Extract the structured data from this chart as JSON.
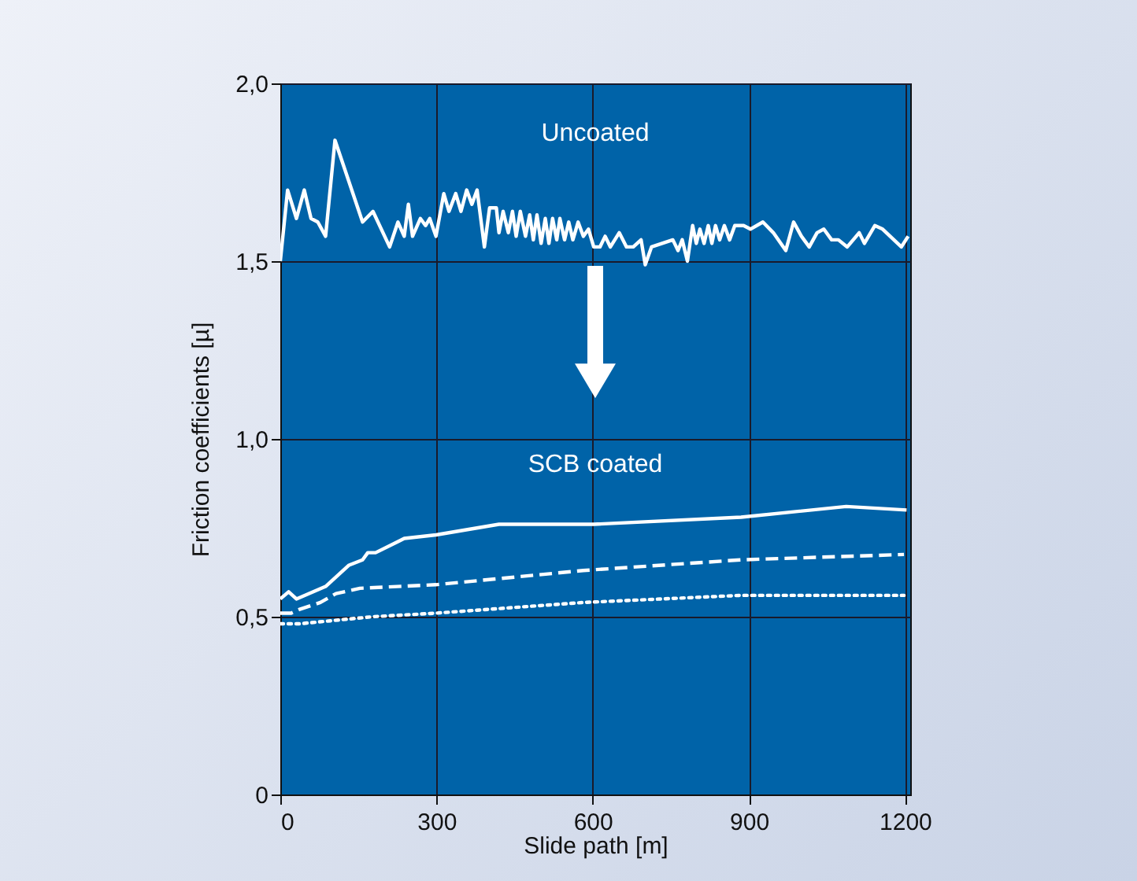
{
  "chart_data": {
    "type": "line",
    "xlabel": "Slide path [m]",
    "ylabel": "Friction coefficients [µ]",
    "xlim": [
      0,
      1210
    ],
    "xticks": [
      0,
      300,
      600,
      900,
      1200
    ],
    "ylim": [
      0,
      2
    ],
    "yticks": [
      {
        "value": 0,
        "label": "0"
      },
      {
        "value": 0.5,
        "label": "0,5"
      },
      {
        "value": 1,
        "label": "1,0"
      },
      {
        "value": 1.5,
        "label": "1,5"
      },
      {
        "value": 2,
        "label": "2,0"
      }
    ],
    "grid": true,
    "marker": "none",
    "series": [
      {
        "color": "#ffffff",
        "line_style": "solid",
        "x": [
          0,
          14,
          31,
          46,
          59,
          72,
          87,
          105,
          158,
          178,
          210,
          226,
          238,
          246,
          254,
          269,
          279,
          287,
          299,
          314,
          324,
          337,
          347,
          358,
          368,
          378,
          392,
          402,
          415,
          420,
          428,
          438,
          446,
          453,
          461,
          471,
          479,
          486,
          493,
          501,
          509,
          516,
          523,
          531,
          537,
          546,
          554,
          562,
          572,
          582,
          592,
          602,
          614,
          624,
          634,
          651,
          665,
          678,
          693,
          701,
          713,
          754,
          764,
          772,
          782,
          792,
          799,
          806,
          814,
          822,
          829,
          836,
          844,
          853,
          863,
          873,
          890,
          903,
          927,
          947,
          971,
          986,
          1001,
          1016,
          1031,
          1044,
          1059,
          1072,
          1089,
          1112,
          1122,
          1142,
          1157,
          1193,
          1206
        ],
        "values": [
          1.5,
          1.7,
          1.62,
          1.7,
          1.62,
          1.61,
          1.57,
          1.84,
          1.61,
          1.64,
          1.54,
          1.61,
          1.57,
          1.66,
          1.57,
          1.62,
          1.6,
          1.62,
          1.57,
          1.69,
          1.64,
          1.69,
          1.64,
          1.7,
          1.66,
          1.7,
          1.54,
          1.65,
          1.65,
          1.58,
          1.64,
          1.58,
          1.64,
          1.57,
          1.64,
          1.57,
          1.63,
          1.56,
          1.63,
          1.55,
          1.62,
          1.55,
          1.62,
          1.56,
          1.62,
          1.56,
          1.61,
          1.56,
          1.61,
          1.57,
          1.59,
          1.54,
          1.54,
          1.57,
          1.54,
          1.58,
          1.54,
          1.54,
          1.56,
          1.49,
          1.54,
          1.56,
          1.53,
          1.56,
          1.5,
          1.6,
          1.55,
          1.59,
          1.55,
          1.6,
          1.55,
          1.6,
          1.56,
          1.6,
          1.56,
          1.6,
          1.6,
          1.59,
          1.61,
          1.58,
          1.53,
          1.61,
          1.57,
          1.54,
          1.58,
          1.59,
          1.56,
          1.56,
          1.54,
          1.58,
          1.55,
          1.6,
          1.59,
          1.54,
          1.57
        ]
      },
      {
        "color": "#ffffff",
        "line_style": "solid",
        "x": [
          0,
          16,
          31,
          87,
          132,
          158,
          168,
          183,
          238,
          299,
          420,
          602,
          885,
          1087,
          1203
        ],
        "values": [
          0.55,
          0.57,
          0.55,
          0.585,
          0.645,
          0.66,
          0.68,
          0.68,
          0.72,
          0.73,
          0.76,
          0.76,
          0.78,
          0.81,
          0.8
        ]
      },
      {
        "color": "#ffffff",
        "line_style": "dashed",
        "x": [
          0,
          21,
          36,
          77,
          107,
          153,
          299,
          582,
          885,
          1198
        ],
        "values": [
          0.51,
          0.51,
          0.52,
          0.54,
          0.565,
          0.58,
          0.59,
          0.63,
          0.66,
          0.675
        ]
      },
      {
        "color": "#ffffff",
        "line_style": "dotted",
        "x": [
          0,
          36,
          178,
          299,
          582,
          885,
          1198
        ],
        "values": [
          0.48,
          0.48,
          0.5,
          0.51,
          0.54,
          0.56,
          0.56
        ]
      }
    ],
    "annotations": [
      "Uncoated",
      "SCB coated"
    ]
  }
}
